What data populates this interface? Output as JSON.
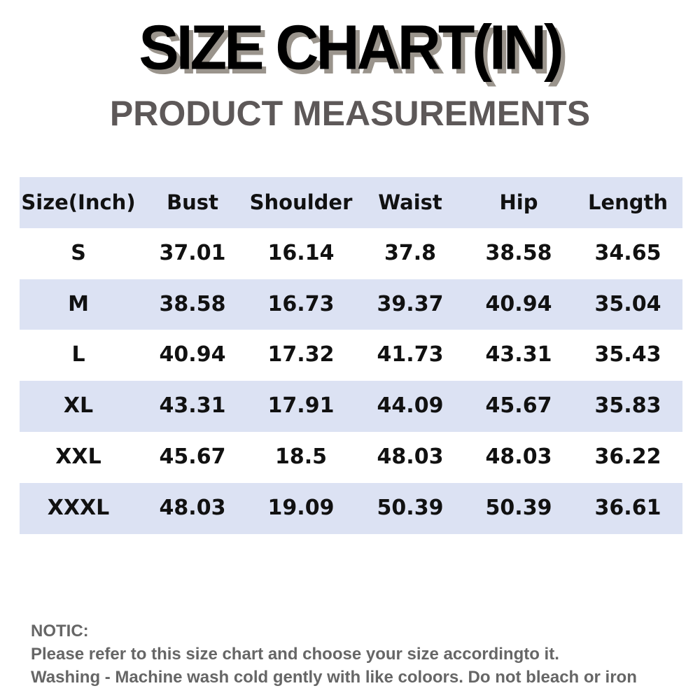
{
  "header": {
    "title": "SIZE CHART(IN)",
    "subtitle": "PRODUCT MEASUREMENTS"
  },
  "table": {
    "columns": [
      "Size(Inch)",
      "Bust",
      "Shoulder",
      "Waist",
      "Hip",
      "Length"
    ],
    "rows": [
      [
        "S",
        "37.01",
        "16.14",
        "37.8",
        "38.58",
        "34.65"
      ],
      [
        "M",
        "38.58",
        "16.73",
        "39.37",
        "40.94",
        "35.04"
      ],
      [
        "L",
        "40.94",
        "17.32",
        "41.73",
        "43.31",
        "35.43"
      ],
      [
        "XL",
        "43.31",
        "17.91",
        "44.09",
        "45.67",
        "35.83"
      ],
      [
        "XXL",
        "45.67",
        "18.5",
        "48.03",
        "48.03",
        "36.22"
      ],
      [
        "XXXL",
        "48.03",
        "19.09",
        "50.39",
        "50.39",
        "36.61"
      ]
    ]
  },
  "note": {
    "heading": "NOTIC:",
    "lines": [
      "Please refer to this size chart and choose your size accordingto it.",
      "Washing - Machine wash cold gently with like coloors. Do not bleach or iron"
    ]
  }
}
